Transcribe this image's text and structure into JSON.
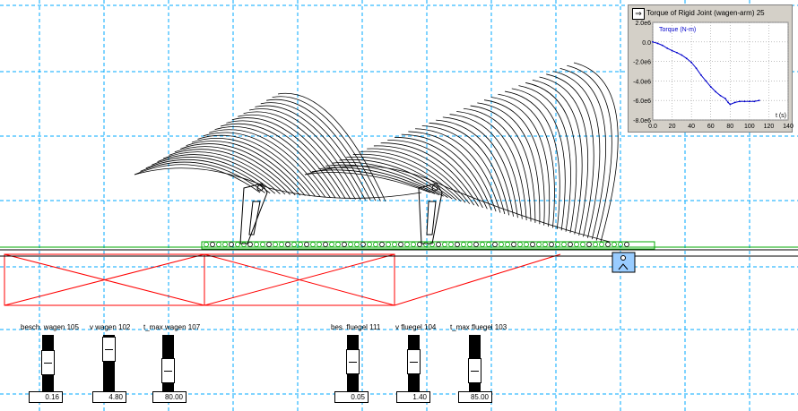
{
  "meter": {
    "title": "Torque of Rigid Joint (wagen-arm) 25",
    "series_label": "Torque (N-m)",
    "x_axis_label": "t (s)",
    "line_color": "#0000cc"
  },
  "chart_data": {
    "type": "line",
    "title": "Torque of Rigid Joint (wagen-arm) 25",
    "xlabel": "t (s)",
    "ylabel": "Torque (N-m)",
    "xlim": [
      0,
      140
    ],
    "ylim": [
      -8000000,
      2000000
    ],
    "x_ticks": [
      "0.0",
      "20",
      "40",
      "60",
      "80",
      "100",
      "120",
      "140"
    ],
    "y_ticks": [
      "2.0e6",
      "0.0",
      "-2.0e6",
      "-4.0e6",
      "-6.0e6",
      "-8.0e6"
    ],
    "x_tick_values": [
      0,
      20,
      40,
      60,
      80,
      100,
      120,
      140
    ],
    "y_tick_values": [
      2000000,
      0,
      -2000000,
      -4000000,
      -6000000,
      -8000000
    ],
    "series": [
      {
        "name": "Torque (N-m)",
        "x": [
          0,
          5,
          10,
          15,
          20,
          25,
          30,
          35,
          40,
          45,
          50,
          55,
          60,
          65,
          70,
          75,
          78,
          80,
          85,
          90,
          95,
          100,
          105,
          110
        ],
        "y": [
          0,
          -150000,
          -350000,
          -650000,
          -900000,
          -1100000,
          -1350000,
          -1700000,
          -2100000,
          -2700000,
          -3400000,
          -4000000,
          -4600000,
          -5100000,
          -5500000,
          -5800000,
          -6200000,
          -6400000,
          -6200000,
          -6100000,
          -6100000,
          -6100000,
          -6100000,
          -6000000
        ]
      }
    ]
  },
  "controls": [
    {
      "label": "besch. wagen 105",
      "value": "0.16"
    },
    {
      "label": "v wagen 102",
      "value": "4.80"
    },
    {
      "label": "t_max wagen 107",
      "value": "80.00"
    },
    {
      "label": "bes. fluegel 111",
      "value": "0.05"
    },
    {
      "label": "v fluegel 104",
      "value": "1.40"
    },
    {
      "label": "t_max fluegel 103",
      "value": "85.00"
    }
  ],
  "colors": {
    "grid": "#00aaff",
    "track": "#00aa00",
    "truss": "#ff0000",
    "wing": "#000000",
    "anchor_box": "#99ccff"
  }
}
